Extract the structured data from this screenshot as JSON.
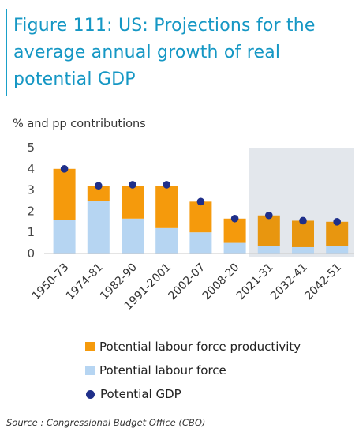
{
  "figure": {
    "title": "Figure 111: US: Projections for the average annual growth of real potential GDP",
    "source": "Source : Congressional Budget Office (CBO)"
  },
  "colors": {
    "title": "#1597c4",
    "productivity": "#f59a0c",
    "productivity_projection": "#e8960f",
    "labour_force": "#b6d5f2",
    "gdp": "#1f2f8a",
    "projection_band": "#e3e7ec"
  },
  "chart_data": {
    "type": "bar",
    "stacked": true,
    "ylabel": "% and pp contributions",
    "ylim": [
      0,
      5
    ],
    "yticks": [
      0,
      1,
      2,
      3,
      4,
      5
    ],
    "categories": [
      "1950-73",
      "1974-81",
      "1982-90",
      "1991-2001",
      "2002-07",
      "2008-20",
      "2021-31",
      "2032-41",
      "2042-51"
    ],
    "projection_start_index": 6,
    "series": [
      {
        "name": "Potential labour force",
        "kind": "bar",
        "values": [
          1.6,
          2.5,
          1.65,
          1.2,
          1.0,
          0.5,
          0.35,
          0.3,
          0.35
        ]
      },
      {
        "name": "Potential labour force productivity",
        "kind": "bar",
        "values": [
          2.4,
          0.7,
          1.55,
          2.0,
          1.45,
          1.15,
          1.45,
          1.25,
          1.15
        ]
      },
      {
        "name": "Potential GDP",
        "kind": "point",
        "values": [
          4.0,
          3.2,
          3.25,
          3.25,
          2.45,
          1.65,
          1.8,
          1.55,
          1.5
        ]
      }
    ],
    "legend": [
      {
        "name": "Potential labour force productivity",
        "marker": "square",
        "color": "#f59a0c"
      },
      {
        "name": "Potential labour force",
        "marker": "square",
        "color": "#b6d5f2"
      },
      {
        "name": "Potential GDP",
        "marker": "circle",
        "color": "#1f2f8a"
      }
    ],
    "legend_position": "bottom",
    "grid": false
  }
}
